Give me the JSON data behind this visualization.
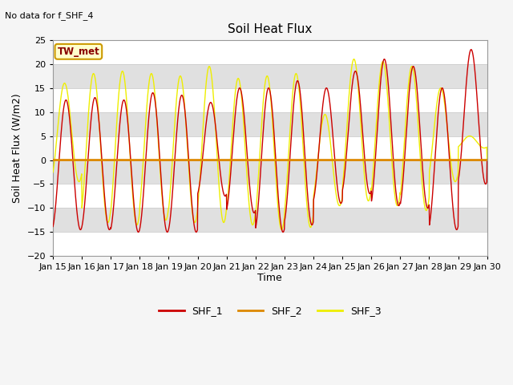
{
  "title": "Soil Heat Flux",
  "no_data_text": "No data for f_SHF_4",
  "ylabel": "Soil Heat Flux (W/m2)",
  "xlabel": "Time",
  "ylim": [
    -20,
    25
  ],
  "n_days": 15,
  "tick_labels": [
    "Jan 15",
    "Jan 16",
    "Jan 17",
    "Jan 18",
    "Jan 19",
    "Jan 20",
    "Jan 21",
    "Jan 22",
    "Jan 23",
    "Jan 24",
    "Jan 25",
    "Jan 26",
    "Jan 27",
    "Jan 28",
    "Jan 29",
    "Jan 30"
  ],
  "shf1_color": "#cc0000",
  "shf2_color": "#dd8800",
  "shf3_color": "#eeee00",
  "annotation_text": "TW_met",
  "annotation_bg": "#ffffcc",
  "annotation_border": "#cc9900",
  "fig_bg": "#f5f5f5",
  "plot_bg": "#ffffff",
  "band_color": "#e0e0e0",
  "title_fontsize": 11,
  "axis_label_fontsize": 9,
  "tick_fontsize": 8,
  "shf1_peaks": [
    12.5,
    13.0,
    12.5,
    14.0,
    13.5,
    12.0,
    15.0,
    15.0,
    16.5,
    15.0,
    18.5,
    21.0,
    19.5,
    15.0,
    23.0
  ],
  "shf1_troughs": [
    -14.5,
    -14.5,
    -15.0,
    -15.0,
    -15.0,
    -7.5,
    -11.0,
    -15.0,
    -13.5,
    -9.0,
    -7.0,
    -9.5,
    -10.0,
    -14.5,
    -5.0
  ],
  "shf3_peaks": [
    16.0,
    18.0,
    18.5,
    18.0,
    17.5,
    19.5,
    17.0,
    17.5,
    18.0,
    9.5,
    21.0,
    20.5,
    19.5,
    15.0,
    5.0
  ],
  "shf3_troughs": [
    -4.5,
    -13.0,
    -13.5,
    -12.5,
    -13.0,
    -13.0,
    -13.5,
    -14.5,
    -14.0,
    -9.5,
    -8.5,
    -9.5,
    -10.5,
    -4.5,
    2.5
  ]
}
